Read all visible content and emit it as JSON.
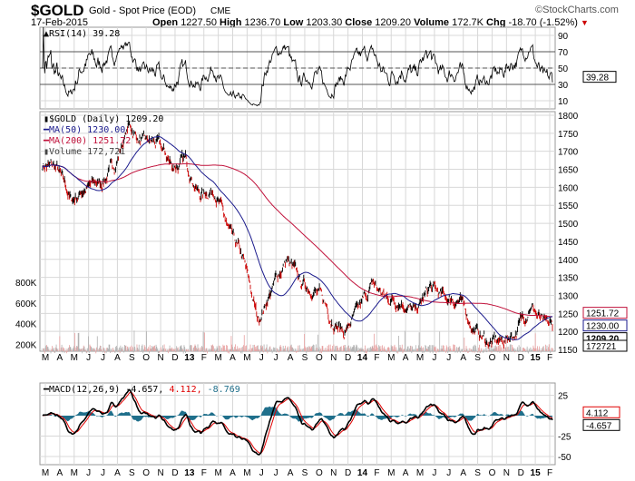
{
  "header": {
    "symbol": "$GOLD",
    "name": "Gold - Spot Price (EOD)",
    "exchange": "CME",
    "brand": "©StockCharts.com",
    "date": "17-Feb-2015",
    "open_label": "Open",
    "open": "1227.50",
    "high_label": "High",
    "high": "1236.70",
    "low_label": "Low",
    "low": "1203.30",
    "close_label": "Close",
    "close": "1209.20",
    "volume_label": "Volume",
    "volume": "172.7K",
    "chg_label": "Chg",
    "chg": "-18.70 (-1.52%)",
    "chg_icon": "down-triangle-icon"
  },
  "colors": {
    "price_up": "#000000",
    "price_down": "#cc0000",
    "ma50": "#1a1a8c",
    "ma200": "#c0103a",
    "volume_up": "#b0b0b0",
    "volume_down": "#e8a0a0",
    "macd": "#000000",
    "signal": "#e00000",
    "histogram": "#1f6f8b",
    "grid": "#d8d8d8"
  },
  "chart_data": [
    {
      "type": "line",
      "panel": "RSI",
      "legend": "RSI(14) 39.28",
      "value_label": "39.28",
      "yticks": [
        "90",
        "70",
        "50",
        "30",
        "10"
      ],
      "ylim": [
        0,
        100
      ],
      "overbought": 70,
      "oversold": 30
    },
    {
      "type": "candlestick",
      "panel": "Price",
      "legend": {
        "price": "$GOLD (Daily) 1209.20",
        "ma50": "MA(50) 1230.00",
        "ma200": "MA(200) 1251.72",
        "volume": "Volume 172,721"
      },
      "value_labels": {
        "ma200": "1251.72",
        "ma50": "1230.00",
        "close": "1209.20",
        "volume": "172721"
      },
      "yticks": [
        "1800",
        "1750",
        "1700",
        "1650",
        "1600",
        "1550",
        "1500",
        "1450",
        "1400",
        "1350",
        "1300",
        "1250",
        "1200",
        "1150"
      ],
      "ylim": [
        1145,
        1810
      ],
      "volume_ticks": [
        "800K",
        "600K",
        "400K",
        "200K"
      ],
      "monthly_close": {
        "months": [
          "Mar-12",
          "Apr-12",
          "May-12",
          "Jun-12",
          "Jul-12",
          "Aug-12",
          "Sep-12",
          "Oct-12",
          "Nov-12",
          "Dec-12",
          "Jan-13",
          "Feb-13",
          "Mar-13",
          "Apr-13",
          "May-13",
          "Jun-13",
          "Jul-13",
          "Aug-13",
          "Sep-13",
          "Oct-13",
          "Nov-13",
          "Dec-13",
          "Jan-14",
          "Feb-14",
          "Mar-14",
          "Apr-14",
          "May-14",
          "Jun-14",
          "Jul-14",
          "Aug-14",
          "Sep-14",
          "Oct-14",
          "Nov-14",
          "Dec-14",
          "Jan-15",
          "Feb-15"
        ],
        "values": [
          1665,
          1650,
          1560,
          1600,
          1610,
          1660,
          1770,
          1720,
          1720,
          1660,
          1670,
          1580,
          1600,
          1470,
          1390,
          1230,
          1320,
          1400,
          1330,
          1320,
          1250,
          1200,
          1250,
          1330,
          1290,
          1290,
          1250,
          1320,
          1290,
          1290,
          1210,
          1170,
          1170,
          1200,
          1280,
          1209
        ]
      }
    },
    {
      "type": "line",
      "panel": "MACD",
      "legend": {
        "label": "MACD(12,26,9)",
        "macd": "-4.657",
        "signal": "4.112",
        "hist": "-8.769"
      },
      "value_labels": {
        "signal": "4.112",
        "macd": "-4.657"
      },
      "yticks": [
        "25",
        "-25",
        "-50"
      ],
      "ylim": [
        -60,
        40
      ]
    }
  ],
  "xaxis": {
    "labels": [
      "M",
      "A",
      "M",
      "J",
      "J",
      "A",
      "S",
      "O",
      "N",
      "D",
      "13",
      "F",
      "M",
      "A",
      "M",
      "J",
      "J",
      "A",
      "S",
      "O",
      "N",
      "D",
      "14",
      "F",
      "M",
      "A",
      "M",
      "J",
      "J",
      "A",
      "S",
      "O",
      "N",
      "D",
      "15",
      "F"
    ],
    "bold": [
      "13",
      "14",
      "15"
    ]
  }
}
